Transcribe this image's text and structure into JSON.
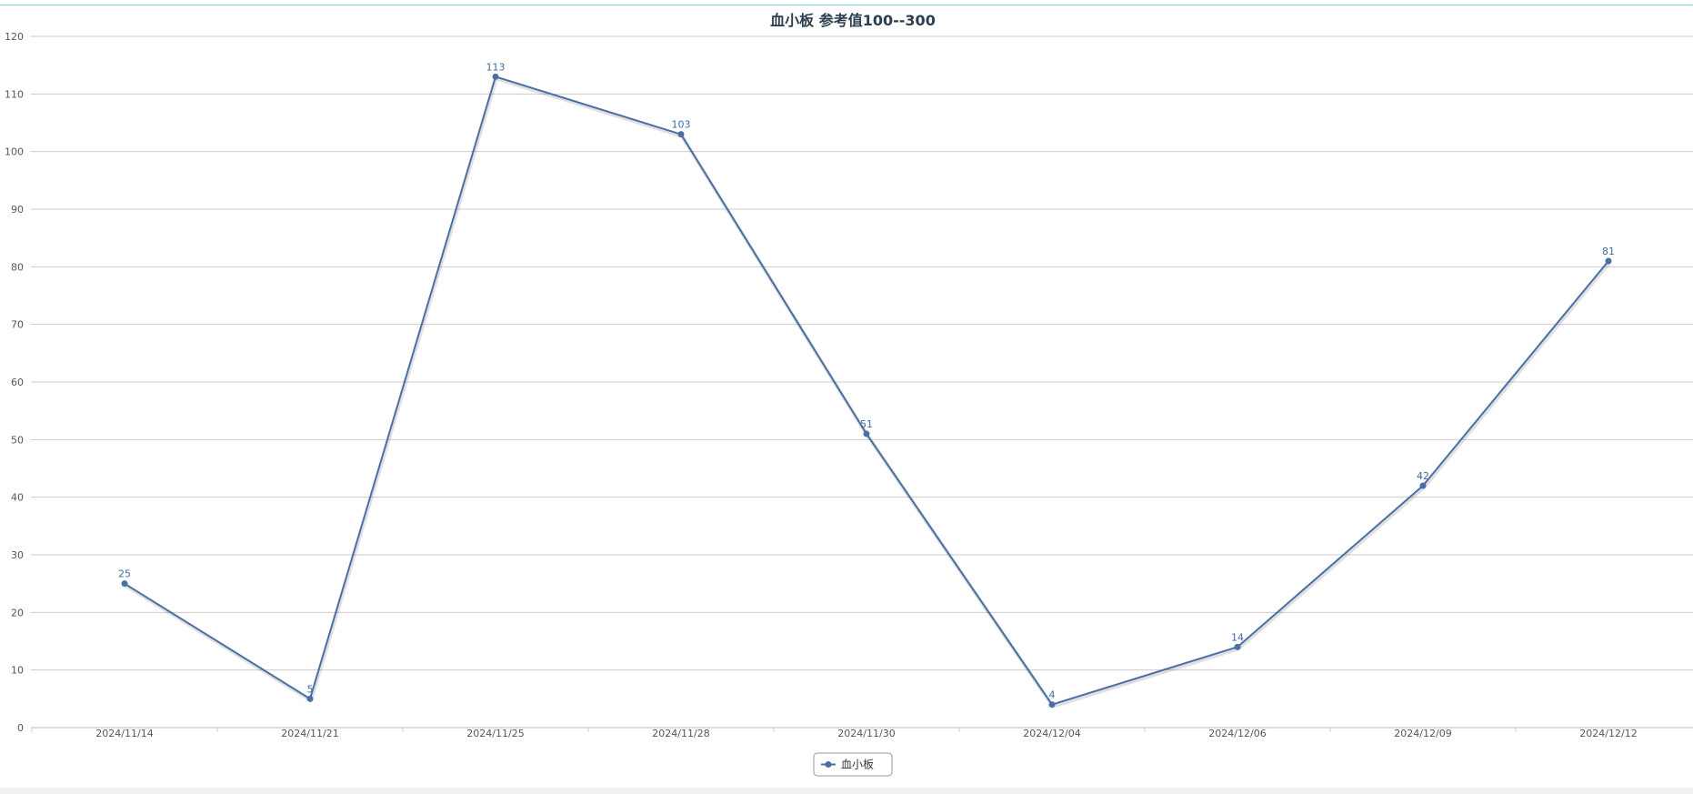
{
  "chart_data": {
    "type": "line",
    "title": "血小板 参考值100--300",
    "categories": [
      "2024/11/14",
      "2024/11/21",
      "2024/11/25",
      "2024/11/28",
      "2024/11/30",
      "2024/12/04",
      "2024/12/06",
      "2024/12/09",
      "2024/12/12"
    ],
    "series": [
      {
        "name": "血小板",
        "values": [
          25,
          5,
          113,
          103,
          51,
          4,
          14,
          42,
          81
        ],
        "color": "#4a6fa5"
      }
    ],
    "ylim": [
      0,
      120
    ],
    "yticks": [
      0,
      10,
      20,
      30,
      40,
      50,
      60,
      70,
      80,
      90,
      100,
      110,
      120
    ],
    "data_labels": true,
    "grid": true,
    "legend_position": "bottom-center",
    "colors": {
      "grid": "#cccccc",
      "axis": "#bbbbbb",
      "line": "#4a6fa5",
      "label": "#3f6aa0"
    }
  }
}
